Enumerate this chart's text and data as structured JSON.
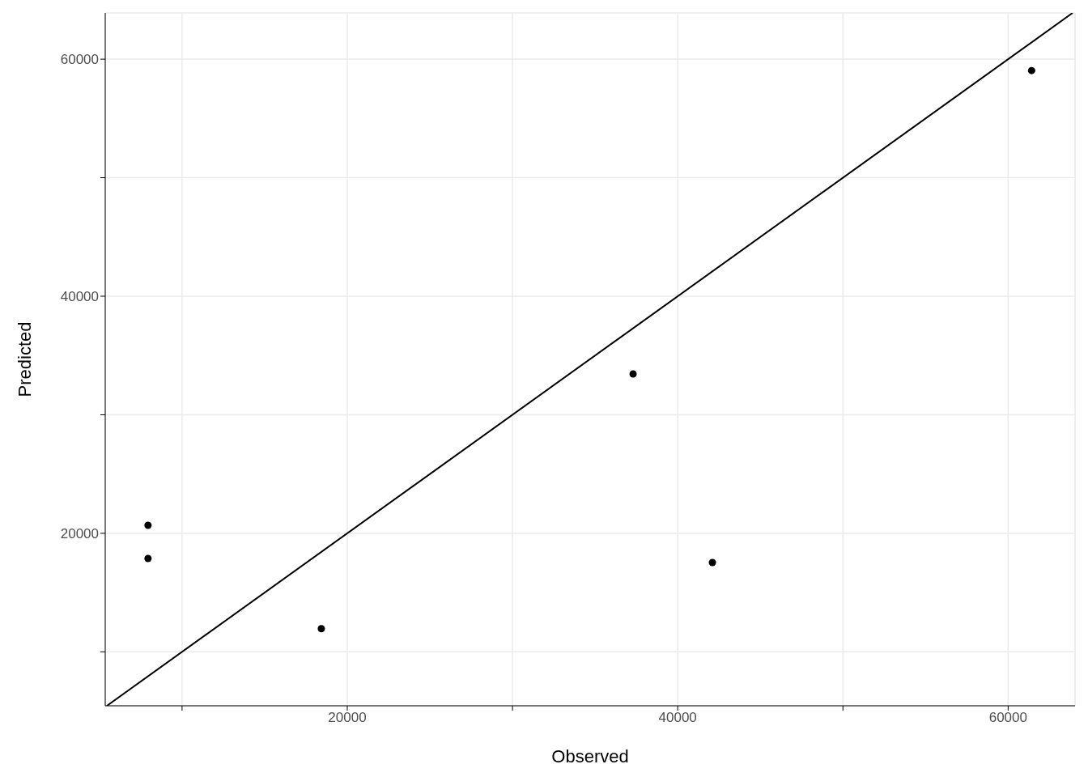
{
  "chart_data": {
    "type": "scatter",
    "xlabel": "Observed",
    "ylabel": "Predicted",
    "xlim": [
      5350,
      64050
    ],
    "ylim": [
      5450,
      63900
    ],
    "xticks": [
      {
        "value": 10000,
        "label": null
      },
      20000,
      {
        "value": 30000,
        "label": null
      },
      40000,
      {
        "value": 50000,
        "label": null
      },
      60000
    ],
    "yticks": [
      {
        "value": 10000,
        "label": null
      },
      20000,
      {
        "value": 30000,
        "label": null
      },
      40000,
      {
        "value": 50000,
        "label": null
      },
      60000
    ],
    "grid": true,
    "series": [
      {
        "marker": "circle",
        "color": "#000000",
        "x": [
          7940,
          7940,
          18430,
          37300,
          42100,
          61420
        ],
        "values": [
          20680,
          17880,
          11950,
          33450,
          17540,
          59040
        ]
      },
      {
        "type": "line",
        "marker": "none",
        "color": "#000000",
        "x": [
          5450,
          63900
        ],
        "values": [
          5450,
          63900
        ]
      }
    ]
  }
}
